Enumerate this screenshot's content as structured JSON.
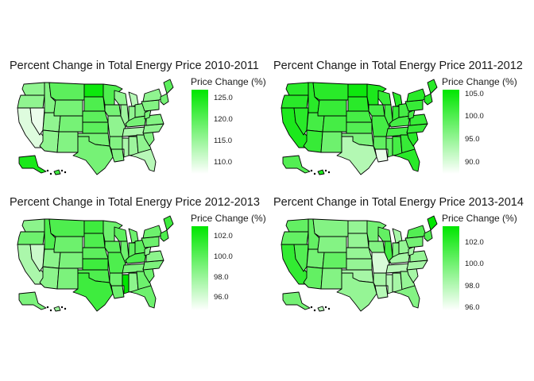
{
  "panels": [
    {
      "title": "Percent Change in Total Energy Price 2010-2011",
      "legend_title": "Price Change (%)",
      "legend_ticks": [
        "125.0",
        "120.0",
        "115.0",
        "110.0"
      ],
      "legend_tick_values": [
        125.0,
        120.0,
        115.0,
        110.0
      ],
      "scale_min": 107.5,
      "scale_max": 127.0,
      "values": {
        "WA": 116,
        "OR": 116,
        "CA": 110,
        "NV": 109,
        "ID": 117,
        "MT": 120,
        "WY": 118,
        "UT": 116,
        "AZ": 116,
        "CO": 118,
        "NM": 117,
        "ND": 126,
        "SD": 121,
        "NE": 120,
        "KS": 120,
        "OK": 118,
        "TX": 118,
        "MN": 121,
        "IA": 118,
        "MO": 116,
        "AR": 117,
        "LA": 117,
        "WI": 116,
        "IL": 115,
        "MI": 113,
        "IN": 116,
        "OH": 117,
        "KY": 118,
        "TN": 114,
        "MS": 114,
        "AL": 115,
        "GA": 116,
        "FL": 113,
        "SC": 117,
        "NC": 116,
        "VA": 117,
        "WV": 118,
        "PA": 117,
        "NY": 116,
        "NE_US": 118,
        "ME": 120,
        "AK": 125,
        "HI": 122
      }
    },
    {
      "title": "Percent Change in Total Energy Price 2011-2012",
      "legend_title": "Price Change (%)",
      "legend_ticks": [
        "105.0",
        "100.0",
        "95.0",
        "90.0"
      ],
      "legend_tick_values": [
        105.0,
        100.0,
        95.0,
        90.0
      ],
      "scale_min": 87.5,
      "scale_max": 106.0,
      "values": {
        "WA": 103,
        "OR": 103,
        "CA": 104,
        "NV": 103,
        "ID": 103,
        "MT": 103,
        "WY": 102,
        "UT": 101,
        "AZ": 102,
        "CO": 101,
        "NM": 98,
        "ND": 105,
        "SD": 103,
        "NE": 101,
        "KS": 100,
        "OK": 97,
        "TX": 93,
        "MN": 104,
        "IA": 101,
        "MO": 101,
        "AR": 99,
        "LA": 89,
        "WI": 102,
        "IL": 101,
        "MI": 103,
        "IN": 102,
        "OH": 101,
        "KY": 101,
        "TN": 101,
        "MS": 99,
        "AL": 101,
        "GA": 102,
        "FL": 103,
        "SC": 103,
        "NC": 102,
        "VA": 102,
        "WV": 101,
        "PA": 102,
        "NY": 103,
        "NE_US": 103,
        "ME": 103,
        "AK": 100,
        "HI": 104
      }
    },
    {
      "title": "Percent Change in Total Energy Price 2012-2013",
      "legend_title": "Price Change (%)",
      "legend_ticks": [
        "102.0",
        "100.0",
        "98.0",
        "96.0"
      ],
      "legend_tick_values": [
        102.0,
        100.0,
        98.0,
        96.0
      ],
      "scale_min": 94.8,
      "scale_max": 103.0,
      "values": {
        "WA": 98.5,
        "OR": 99.5,
        "CA": 97.5,
        "NV": 96.5,
        "ID": 100.5,
        "MT": 100.5,
        "WY": 99.5,
        "UT": 98.5,
        "AZ": 98.5,
        "CO": 99,
        "NM": 99,
        "ND": 101,
        "SD": 100.5,
        "NE": 100,
        "KS": 101,
        "OK": 100.5,
        "TX": 101,
        "MN": 99.5,
        "IA": 100,
        "MO": 100.5,
        "AR": 99.5,
        "LA": 99.5,
        "WI": 100,
        "IL": 99.5,
        "MI": 99.5,
        "IN": 100,
        "OH": 100,
        "KY": 100.5,
        "TN": 99,
        "MS": 103,
        "AL": 98.5,
        "GA": 99.5,
        "FL": 99.5,
        "SC": 99.5,
        "NC": 99,
        "VA": 98.5,
        "WV": 98.5,
        "PA": 99.5,
        "NY": 99.5,
        "NE_US": 100.5,
        "ME": 101,
        "AK": 99,
        "HI": 98
      }
    },
    {
      "title": "Percent Change in Total Energy Price 2013-2014",
      "legend_title": "Price Change (%)",
      "legend_ticks": [
        "102.0",
        "100.0",
        "98.0",
        "96.0"
      ],
      "legend_tick_values": [
        102.0,
        100.0,
        98.0,
        96.0
      ],
      "scale_min": 95.8,
      "scale_max": 103.5,
      "values": {
        "WA": 100.5,
        "OR": 100.5,
        "CA": 102,
        "NV": 101,
        "ID": 100.5,
        "MT": 99.5,
        "WY": 99.5,
        "UT": 100,
        "AZ": 100.5,
        "CO": 100.5,
        "NM": 99.5,
        "ND": 99,
        "SD": 99,
        "NE": 99,
        "KS": 99,
        "OK": 98.5,
        "TX": 99,
        "MN": 100,
        "IA": 99.5,
        "MO": 97,
        "AR": 98.5,
        "LA": 98,
        "WI": 100.5,
        "IL": 101.5,
        "MI": 98.5,
        "IN": 99.5,
        "OH": 99,
        "KY": 98.5,
        "TN": 98,
        "MS": 98,
        "AL": 98.5,
        "GA": 99,
        "FL": 99.5,
        "SC": 98.5,
        "NC": 98.5,
        "VA": 99,
        "WV": 98.5,
        "PA": 100,
        "NY": 101,
        "NE_US": 101,
        "ME": 103.5,
        "AK": 100,
        "HI": 98
      }
    }
  ],
  "colors": {
    "low": "#ffffff",
    "high": "#00e600",
    "border": "#000000"
  }
}
